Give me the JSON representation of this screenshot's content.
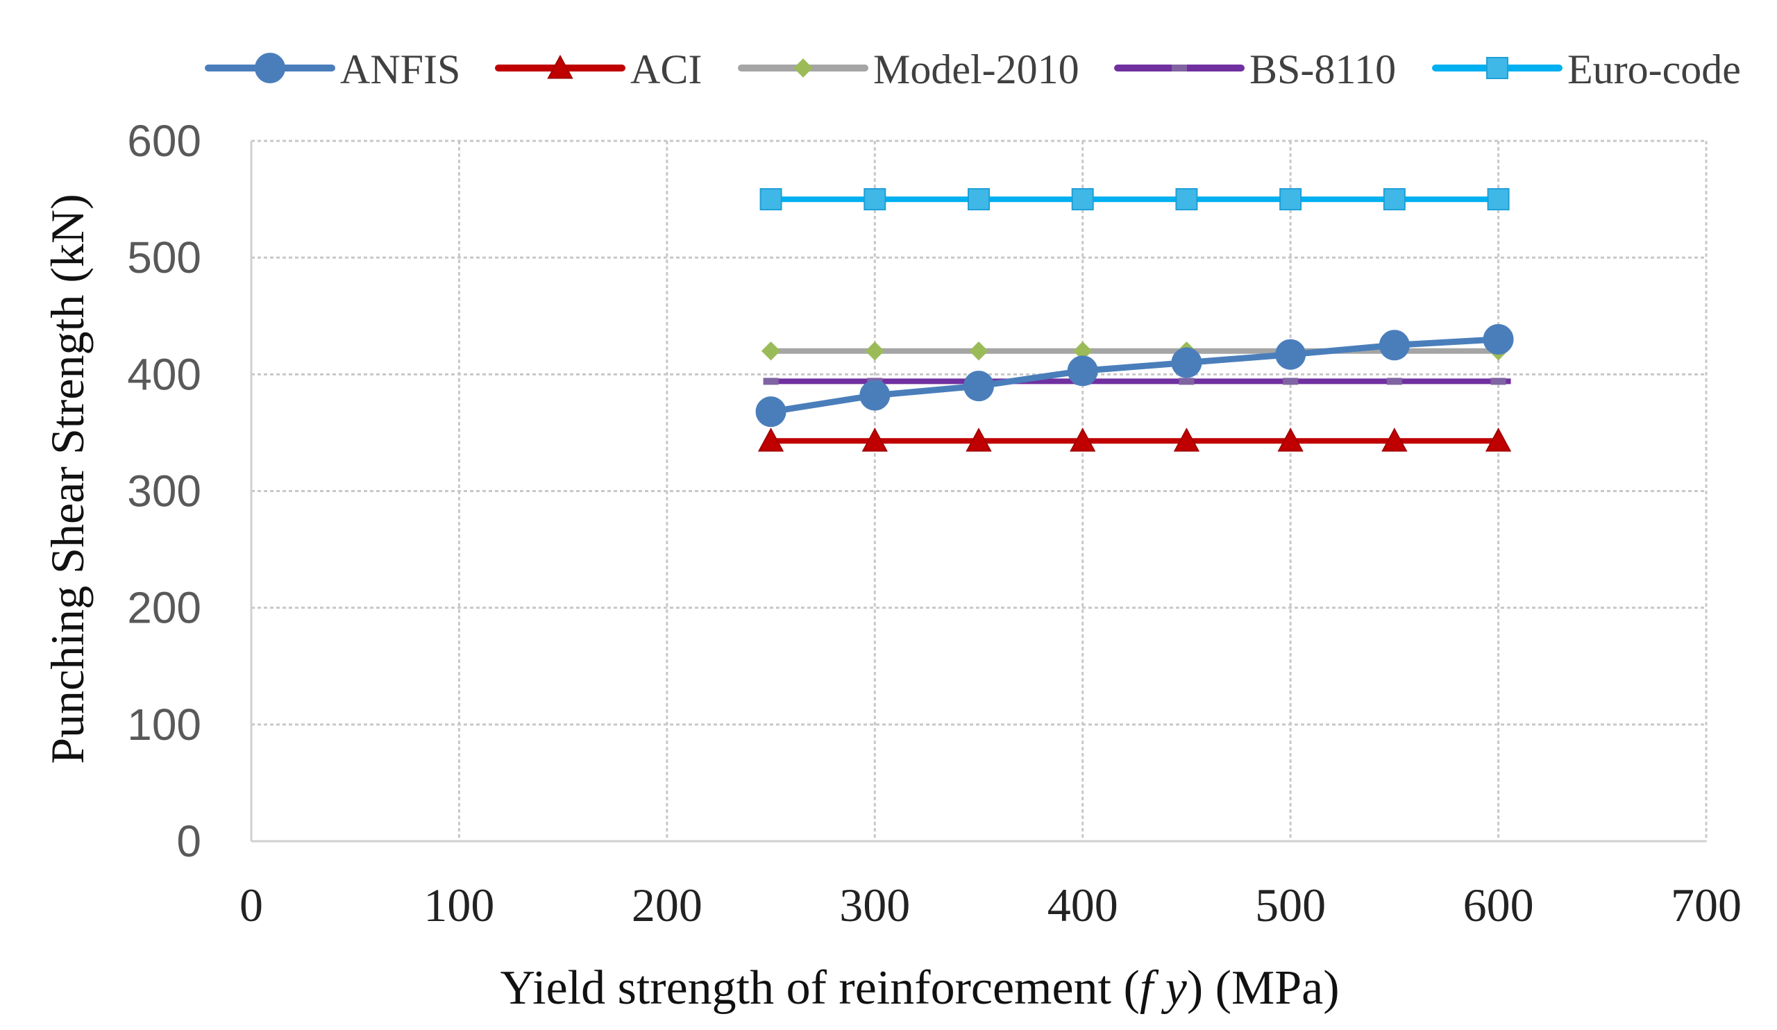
{
  "chart_data": {
    "type": "line",
    "xlabel": "Yield strength of reinforcement (fy) (MPa)",
    "xlabel_parts": {
      "pre": "Yield strength of reinforcement (",
      "var": "f y",
      "post": ") (MPa)"
    },
    "ylabel": "Punching Shear Strength (kN)",
    "xlim": [
      0,
      700
    ],
    "ylim": [
      0,
      600
    ],
    "xticks": [
      "0",
      "100",
      "200",
      "300",
      "400",
      "500",
      "600",
      "700"
    ],
    "yticks": [
      "0",
      "100",
      "200",
      "300",
      "400",
      "500",
      "600"
    ],
    "grid": true,
    "legend_position": "top",
    "x": [
      250,
      300,
      350,
      400,
      450,
      500,
      550,
      600
    ],
    "series": [
      {
        "name": "ANFIS",
        "color": "#4a7ebb",
        "marker": "circle",
        "values": [
          368,
          382,
          390,
          403,
          410,
          417,
          425,
          430
        ]
      },
      {
        "name": "ACI",
        "color": "#c00000",
        "marker": "triangle",
        "values": [
          343,
          343,
          343,
          343,
          343,
          343,
          343,
          343
        ]
      },
      {
        "name": "Model-2010",
        "color": "#a5a5a5",
        "marker": "diamond",
        "markerColor": "#9bbb59",
        "values": [
          420,
          420,
          420,
          420,
          420,
          420,
          420,
          420
        ]
      },
      {
        "name": "BS-8110",
        "color": "#7030a0",
        "marker": "dash",
        "markerColor": "#8064a2",
        "values": [
          394,
          394,
          394,
          394,
          394,
          394,
          394,
          394
        ]
      },
      {
        "name": "Euro-code",
        "color": "#00b0f0",
        "marker": "square",
        "markerColor": "#3fb8e8",
        "values": [
          550,
          550,
          550,
          550,
          550,
          550,
          550,
          550
        ]
      }
    ]
  }
}
